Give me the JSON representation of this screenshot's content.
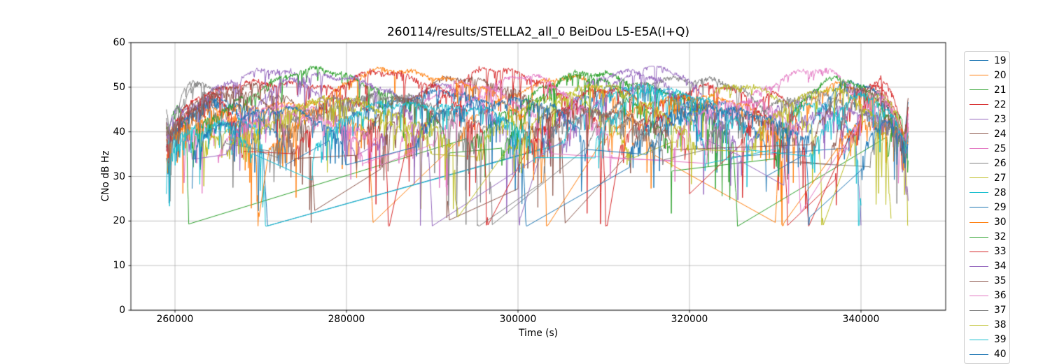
{
  "figure": {
    "title": "260114/results/STELLA2_all_0 BeiDou L5-E5A(I+Q)",
    "xlabel": "Time (s)",
    "ylabel": "CNo dB Hz"
  },
  "chart_data": {
    "type": "line",
    "title": "260114/results/STELLA2_all_0 BeiDou L5-E5A(I+Q)",
    "xlabel": "Time (s)",
    "ylabel": "CNo dB Hz",
    "xlim": [
      254857,
      349878
    ],
    "ylim": [
      0,
      60
    ],
    "x_ticks": [
      260000,
      280000,
      300000,
      320000,
      340000
    ],
    "y_ticks": [
      0,
      10,
      20,
      30,
      40,
      50,
      60
    ],
    "grid": true,
    "grid_color": "#b0b0b0",
    "legend_position": "right-outside",
    "legend_note": "PRN labels 19-40 with 31 absent; last entry (40) is clipped by the bottom figure edge",
    "data_time_range": [
      259000,
      345500
    ],
    "value_band": "noisy C/N0 arcs mostly 38-54 dB-Hz with dropouts spiking down to ~19 dB-Hz; straight thin diagonals are gap-connecting segments",
    "passes_format": "[t_start_s, t_end_s, peak_cn0_dbhz, start_cn0_dbhz, end_cn0_dbhz]",
    "series": [
      {
        "name": "19",
        "color": "#1f77b4",
        "seed": 3,
        "passes": [
          [
            259000,
            270800,
            47,
            36,
            19.5
          ],
          [
            302500,
            325000,
            51,
            37,
            35
          ],
          [
            338000,
            345500,
            45,
            36,
            41
          ]
        ]
      },
      {
        "name": "20",
        "color": "#ff7f0e",
        "seed": 7,
        "passes": [
          [
            259000,
            283100,
            47,
            38,
            21
          ],
          [
            293000,
            316000,
            52,
            37,
            36
          ],
          [
            330000,
            345500,
            50,
            21,
            41
          ]
        ]
      },
      {
        "name": "21",
        "color": "#2ca02c",
        "seed": 11,
        "passes": [
          [
            259000,
            261600,
            45,
            40,
            21
          ],
          [
            294000,
            325600,
            53,
            38,
            21
          ],
          [
            343000,
            345500,
            46,
            40,
            38
          ]
        ]
      },
      {
        "name": "22",
        "color": "#d62728",
        "seed": 13,
        "passes": [
          [
            259000,
            285000,
            52,
            40,
            19.5
          ],
          [
            287000,
            310400,
            54,
            38,
            19
          ],
          [
            312000,
            331500,
            50.5,
            36,
            22
          ],
          [
            337000,
            345500,
            50,
            30,
            44
          ]
        ]
      },
      {
        "name": "23",
        "color": "#9467bd",
        "seed": 17,
        "passes": [
          [
            259000,
            281000,
            54,
            42,
            36
          ],
          [
            283000,
            300300,
            50,
            38,
            24
          ],
          [
            303000,
            322000,
            54.5,
            37,
            38
          ],
          [
            326000,
            340000,
            47,
            36,
            22
          ]
        ]
      },
      {
        "name": "24",
        "color": "#8c564b",
        "seed": 19,
        "passes": [
          [
            259000,
            276300,
            51.5,
            42,
            22.5
          ],
          [
            284000,
            305500,
            52.5,
            36,
            20
          ],
          [
            313000,
            333000,
            46,
            36,
            35
          ],
          [
            336500,
            345500,
            51,
            38,
            47
          ]
        ]
      },
      {
        "name": "25",
        "color": "#e377c2",
        "seed": 23,
        "passes": [
          [
            261000,
            282000,
            46,
            38,
            35
          ],
          [
            286000,
            304000,
            51,
            37,
            36
          ],
          [
            322000,
            345500,
            53.5,
            36,
            45
          ]
        ]
      },
      {
        "name": "26",
        "color": "#7f7f7f",
        "seed": 29,
        "passes": [
          [
            259000,
            267000,
            51.5,
            44,
            38
          ],
          [
            272000,
            297000,
            48,
            35,
            21
          ],
          [
            308000,
            331600,
            53,
            37,
            35
          ],
          [
            341000,
            345500,
            43,
            32,
            38
          ]
        ]
      },
      {
        "name": "27",
        "color": "#bcbd22",
        "seed": 31,
        "passes": [
          [
            263000,
            290000,
            46,
            36,
            34
          ],
          [
            295000,
            313500,
            48,
            35,
            36
          ],
          [
            318000,
            335600,
            51,
            38,
            21
          ],
          [
            339000,
            345500,
            49.5,
            40,
            26
          ]
        ]
      },
      {
        "name": "28",
        "color": "#17becf",
        "seed": 37,
        "passes": [
          [
            259000,
            270600,
            43,
            37,
            19.5
          ],
          [
            305000,
            322000,
            50,
            38,
            35
          ],
          [
            330000,
            340000,
            47,
            36,
            25
          ]
        ]
      },
      {
        "name": "29",
        "color": "#1f77b4",
        "seed": 41,
        "passes": [
          [
            259000,
            273000,
            47,
            34,
            36
          ],
          [
            278000,
            301000,
            49,
            37,
            20
          ],
          [
            313000,
            329000,
            47,
            36,
            37
          ],
          [
            333000,
            345500,
            50.5,
            35,
            48
          ]
        ]
      },
      {
        "name": "30",
        "color": "#ff7f0e",
        "seed": 43,
        "passes": [
          [
            259000,
            269800,
            44,
            36,
            22
          ],
          [
            271000,
            303500,
            54,
            36,
            20.5
          ],
          [
            310000,
            331000,
            49,
            38,
            21
          ],
          [
            337000,
            345500,
            42,
            37,
            39
          ]
        ]
      },
      {
        "name": "32",
        "color": "#2ca02c",
        "seed": 47,
        "passes": [
          [
            262000,
            292000,
            53.5,
            36,
            36
          ],
          [
            298000,
            318000,
            52,
            37,
            35
          ],
          [
            330000,
            345500,
            51.5,
            36,
            44
          ]
        ]
      },
      {
        "name": "33",
        "color": "#d62728",
        "seed": 53,
        "passes": [
          [
            259000,
            268000,
            48,
            38,
            36
          ],
          [
            274000,
            296500,
            54,
            36,
            20
          ],
          [
            301000,
            320000,
            49,
            37,
            36
          ],
          [
            326000,
            333900,
            49,
            37,
            18.8
          ],
          [
            339000,
            345500,
            51,
            40,
            47
          ]
        ]
      },
      {
        "name": "34",
        "color": "#9467bd",
        "seed": 59,
        "passes": [
          [
            259000,
            262000,
            46,
            40,
            36
          ],
          [
            266000,
            290000,
            53.5,
            37,
            20
          ],
          [
            305000,
            326000,
            54,
            38,
            35
          ],
          [
            331000,
            345500,
            46,
            36,
            25
          ]
        ]
      },
      {
        "name": "35",
        "color": "#8c564b",
        "seed": 61,
        "passes": [
          [
            259000,
            274000,
            50,
            40,
            35
          ],
          [
            281000,
            292000,
            47,
            36,
            20.5
          ],
          [
            300000,
            318000,
            46,
            35,
            36
          ],
          [
            334000,
            345500,
            51,
            36,
            48
          ]
        ]
      },
      {
        "name": "36",
        "color": "#e377c2",
        "seed": 67,
        "passes": [
          [
            265000,
            284000,
            44,
            36,
            35
          ],
          [
            290000,
            311000,
            52,
            37,
            36
          ],
          [
            318000,
            333000,
            48,
            36,
            21
          ],
          [
            338000,
            345500,
            49,
            38,
            44
          ]
        ]
      },
      {
        "name": "37",
        "color": "#7f7f7f",
        "seed": 71,
        "passes": [
          [
            259000,
            266000,
            51,
            45,
            38
          ],
          [
            271000,
            295500,
            49,
            36,
            19
          ],
          [
            303000,
            317000,
            45,
            36,
            35
          ],
          [
            322000,
            345500,
            48,
            36,
            40
          ]
        ]
      },
      {
        "name": "38",
        "color": "#bcbd22",
        "seed": 73,
        "passes": [
          [
            266000,
            293000,
            47,
            36,
            21
          ],
          [
            299000,
            321000,
            50,
            37,
            36
          ],
          [
            327000,
            343500,
            49.5,
            36,
            22
          ]
        ]
      },
      {
        "name": "39",
        "color": "#17becf",
        "seed": 79,
        "passes": [
          [
            259000,
            269000,
            42,
            36,
            36
          ],
          [
            276000,
            302000,
            47,
            35,
            36
          ],
          [
            309000,
            327000,
            50,
            38,
            35
          ],
          [
            334000,
            345500,
            48,
            36,
            40
          ]
        ]
      },
      {
        "name": "40",
        "color": "#1f77b4",
        "seed": 83,
        "passes": [
          [
            262000,
            280000,
            45,
            36,
            34
          ],
          [
            288000,
            308000,
            48,
            36,
            36
          ],
          [
            315000,
            334000,
            46,
            36,
            22
          ],
          [
            340000,
            345500,
            43,
            34,
            38
          ]
        ]
      }
    ]
  }
}
